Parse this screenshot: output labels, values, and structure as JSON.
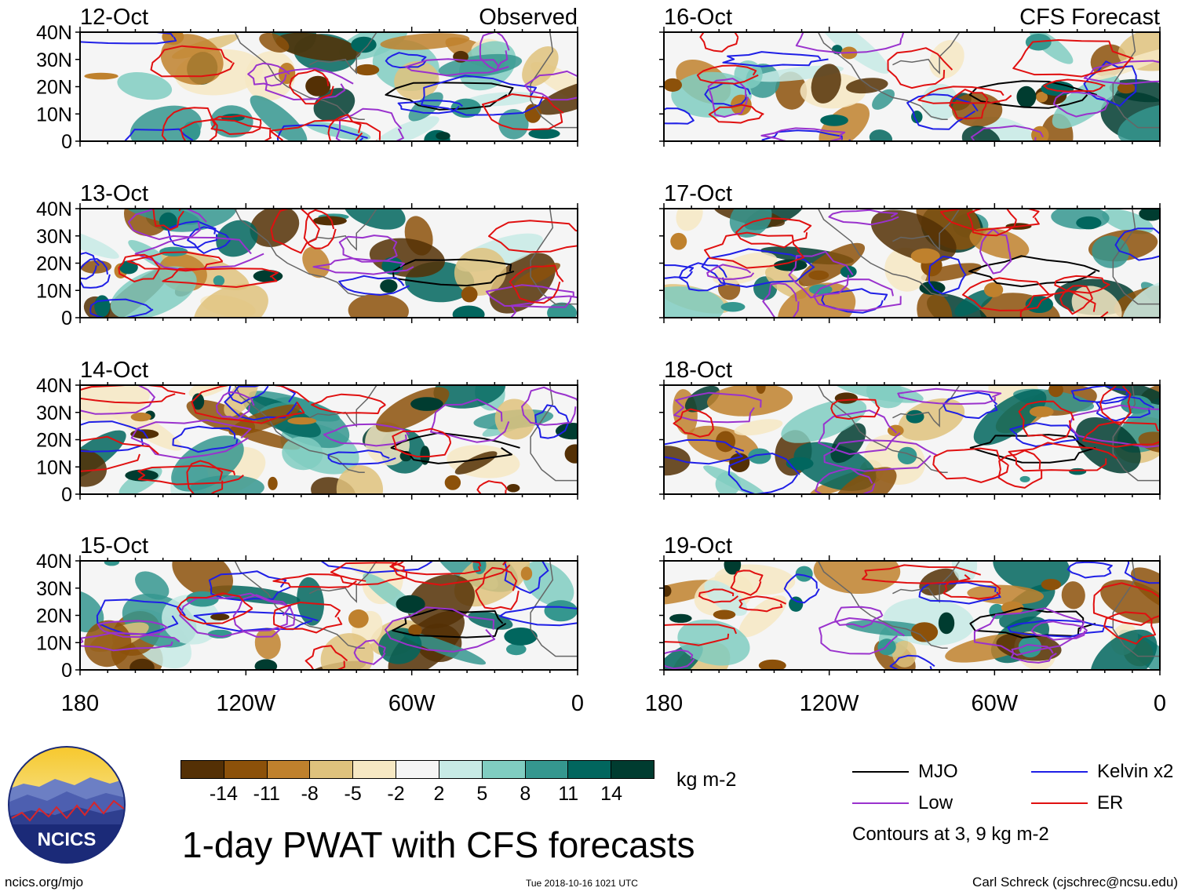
{
  "title": "1-day PWAT with CFS forecasts",
  "footer": {
    "site": "ncics.org/mjo",
    "timestamp": "Tue 2018-10-16 1021 UTC",
    "author": "Carl Schreck (cjschrec@ncsu.edu)"
  },
  "logo_text": "NCICS",
  "column_headers": {
    "left": "Observed",
    "right": "CFS Forecast"
  },
  "colorbar": {
    "units": "kg m-2",
    "colors": [
      "#543005",
      "#8c510a",
      "#bf812d",
      "#dfc27d",
      "#f6e8c3",
      "#f5f5f5",
      "#c7eae5",
      "#80cdc1",
      "#35978f",
      "#01665e",
      "#003c30"
    ],
    "ticks": [
      "-14",
      "-11",
      "-8",
      "-5",
      "-2",
      "2",
      "5",
      "8",
      "11",
      "14"
    ]
  },
  "legend": {
    "items": [
      {
        "label": "MJO",
        "color": "#000000"
      },
      {
        "label": "Kelvin x2",
        "color": "#1f1fe6"
      },
      {
        "label": "Low",
        "color": "#9a32cd"
      },
      {
        "label": "ER",
        "color": "#e01010"
      }
    ],
    "note": "Contours at 3, 9 kg m-2"
  },
  "chart_data": {
    "type": "heatmap",
    "variable": "1-day precipitable water anomaly",
    "units": "kg m-2",
    "lat_labels": [
      "40N",
      "30N",
      "20N",
      "10N",
      "0"
    ],
    "lon_labels": [
      "180",
      "120W",
      "60W",
      "0"
    ],
    "lat_range": [
      0,
      40
    ],
    "lon_range": [
      -180,
      0
    ],
    "panels": [
      {
        "date": "12-Oct",
        "type": "Observed"
      },
      {
        "date": "13-Oct",
        "type": "Observed"
      },
      {
        "date": "14-Oct",
        "type": "Observed"
      },
      {
        "date": "15-Oct",
        "type": "Observed"
      },
      {
        "date": "16-Oct",
        "type": "CFS Forecast"
      },
      {
        "date": "17-Oct",
        "type": "CFS Forecast"
      },
      {
        "date": "18-Oct",
        "type": "CFS Forecast"
      },
      {
        "date": "19-Oct",
        "type": "CFS Forecast"
      }
    ],
    "contour_levels": [
      3,
      9
    ]
  }
}
